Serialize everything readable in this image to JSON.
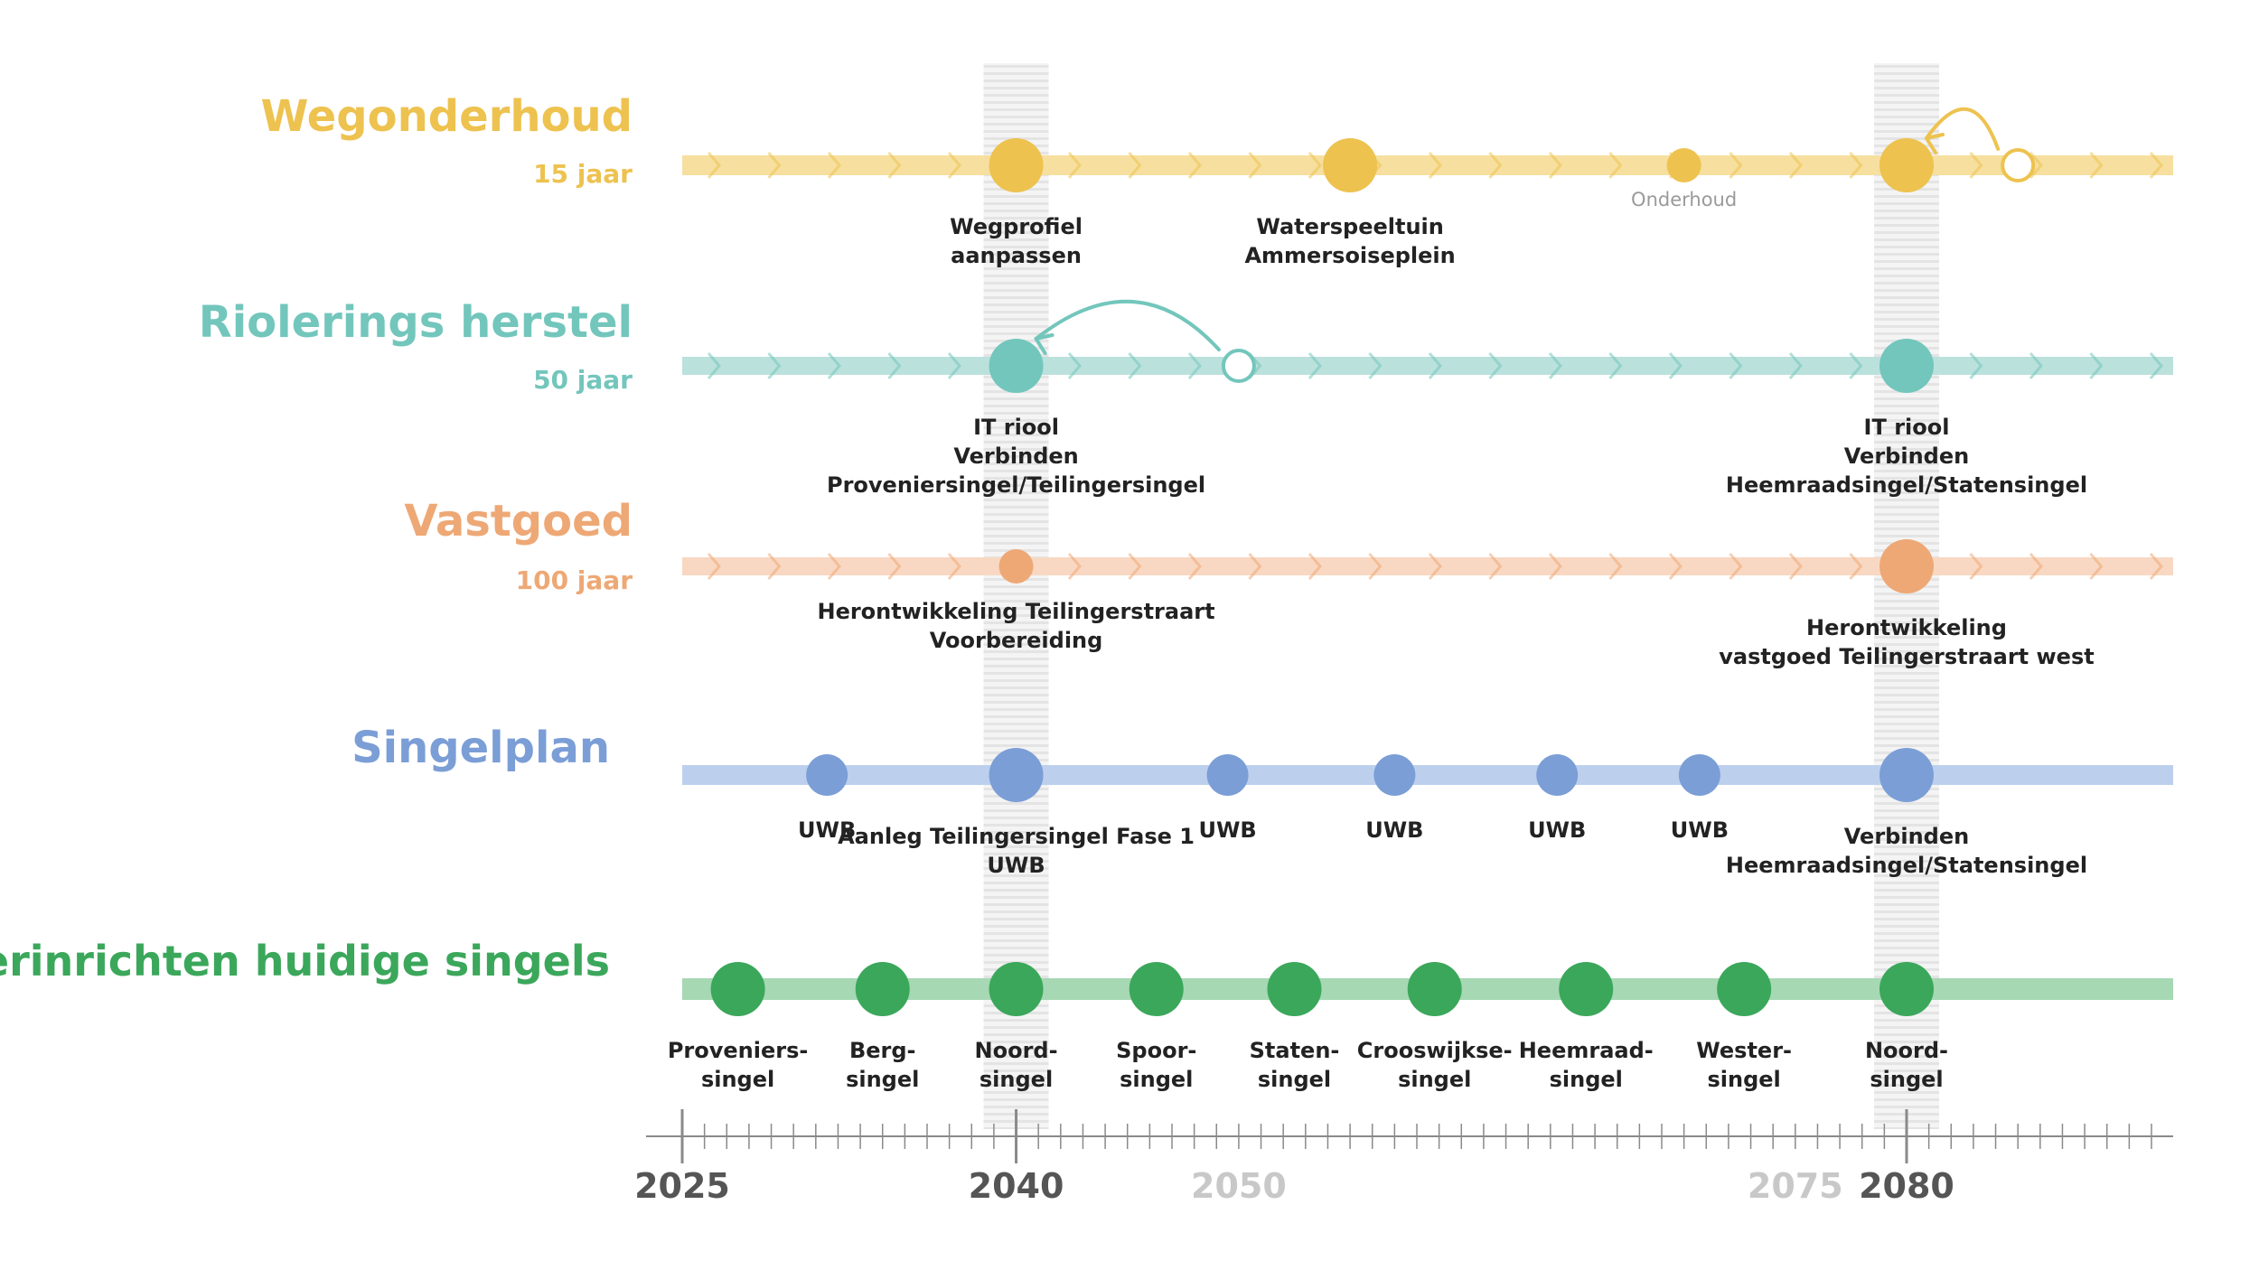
{
  "colors": {
    "yellow": "#EDC24F",
    "yellow_light": "#F6DF9F",
    "teal": "#73C6BC",
    "teal_light": "#BBE1DC",
    "orange": "#EEA875",
    "orange_light": "#F8D8C2",
    "blue": "#7B9ED6",
    "blue_light": "#BCD0EE",
    "green": "#3BA75B",
    "green_light": "#A6D8B3",
    "axis": "#8A8A8A",
    "text": "#222222",
    "faded": "#C8C8C8",
    "muted": "#9A9A9A"
  },
  "rows": [
    {
      "id": "wegonderhoud",
      "title": "Wegonderhoud",
      "subtitle": "15 jaar",
      "color": "yellow",
      "arrows": true,
      "events": [
        {
          "year": 2040,
          "size": "large",
          "label": [
            "Wegprofiel",
            "aanpassen"
          ]
        },
        {
          "year": 2055,
          "size": "large",
          "label": [
            "Waterspeeltuin",
            "Ammersoiseplein"
          ]
        },
        {
          "year": 2070,
          "size": "small",
          "label": [
            "Onderhoud"
          ],
          "muted": true
        },
        {
          "year": 2080,
          "size": "large",
          "label": []
        },
        {
          "year": 2085,
          "size": "hollow",
          "label": []
        }
      ],
      "move_arrow": {
        "from": 2085,
        "to": 2080
      }
    },
    {
      "id": "riolering",
      "title": "Riolerings herstel",
      "subtitle": "50 jaar",
      "color": "teal",
      "arrows": true,
      "events": [
        {
          "year": 2040,
          "size": "large",
          "label": [
            "IT riool",
            "Verbinden",
            "Proveniersingel/Teilingersingel"
          ]
        },
        {
          "year": 2050,
          "size": "hollow",
          "label": []
        },
        {
          "year": 2080,
          "size": "large",
          "label": [
            "IT riool",
            "Verbinden",
            "Heemraadsingel/Statensingel"
          ]
        }
      ],
      "move_arrow": {
        "from": 2050,
        "to": 2040
      }
    },
    {
      "id": "vastgoed",
      "title": "Vastgoed",
      "subtitle": "100 jaar",
      "color": "orange",
      "arrows": true,
      "events": [
        {
          "year": 2040,
          "size": "small",
          "label": [
            "Herontwikkeling Teilingerstraart",
            "Voorbereiding"
          ]
        },
        {
          "year": 2080,
          "size": "large",
          "label": [
            "Herontwikkeling",
            "vastgoed Teilingerstraart west"
          ]
        }
      ]
    },
    {
      "id": "singelplan",
      "title": "Singelplan",
      "subtitle": "",
      "color": "blue",
      "arrows": false,
      "events": [
        {
          "year": 2031.5,
          "size": "medium",
          "label": [
            "UWB"
          ]
        },
        {
          "year": 2040,
          "size": "large",
          "label": [
            "Aanleg Teilingersingel Fase 1",
            "UWB"
          ]
        },
        {
          "year": 2049.5,
          "size": "medium",
          "label": [
            "UWB"
          ]
        },
        {
          "year": 2057,
          "size": "medium",
          "label": [
            "UWB"
          ]
        },
        {
          "year": 2064.3,
          "size": "medium",
          "label": [
            "UWB"
          ]
        },
        {
          "year": 2070.7,
          "size": "medium",
          "label": [
            "UWB"
          ]
        },
        {
          "year": 2080,
          "size": "large",
          "label": [
            "Verbinden",
            "Heemraadsingel/Statensingel"
          ]
        }
      ]
    },
    {
      "id": "herinrichten",
      "title": "Herinrichten huidige singels",
      "subtitle": "",
      "color": "green",
      "arrows": false,
      "events": [
        {
          "year": 2027.5,
          "size": "large",
          "label": [
            "Proveniers-",
            "singel"
          ]
        },
        {
          "year": 2034,
          "size": "large",
          "label": [
            "Berg-",
            "singel"
          ]
        },
        {
          "year": 2040,
          "size": "large",
          "label": [
            "Noord-",
            "singel"
          ]
        },
        {
          "year": 2046.3,
          "size": "large",
          "label": [
            "Spoor-",
            "singel"
          ]
        },
        {
          "year": 2052.5,
          "size": "large",
          "label": [
            "Staten-",
            "singel"
          ]
        },
        {
          "year": 2058.8,
          "size": "large",
          "label": [
            "Crooswijkse-",
            "singel"
          ]
        },
        {
          "year": 2065.6,
          "size": "large",
          "label": [
            "Heemraad-",
            "singel"
          ]
        },
        {
          "year": 2072.7,
          "size": "large",
          "label": [
            "Wester-",
            "singel"
          ]
        },
        {
          "year": 2080,
          "size": "large",
          "label": [
            "Noord-",
            "singel"
          ]
        }
      ]
    }
  ],
  "axis": {
    "range": [
      2025,
      2092
    ],
    "labels": [
      {
        "year": 2025,
        "text": "2025",
        "style": "dark"
      },
      {
        "year": 2040,
        "text": "2040",
        "style": "dark"
      },
      {
        "year": 2050,
        "text": "2050",
        "style": "faded"
      },
      {
        "year": 2075,
        "text": "2075",
        "style": "faded"
      },
      {
        "year": 2080,
        "text": "2080",
        "style": "dark"
      }
    ],
    "highlight_years": [
      2040,
      2080
    ]
  }
}
